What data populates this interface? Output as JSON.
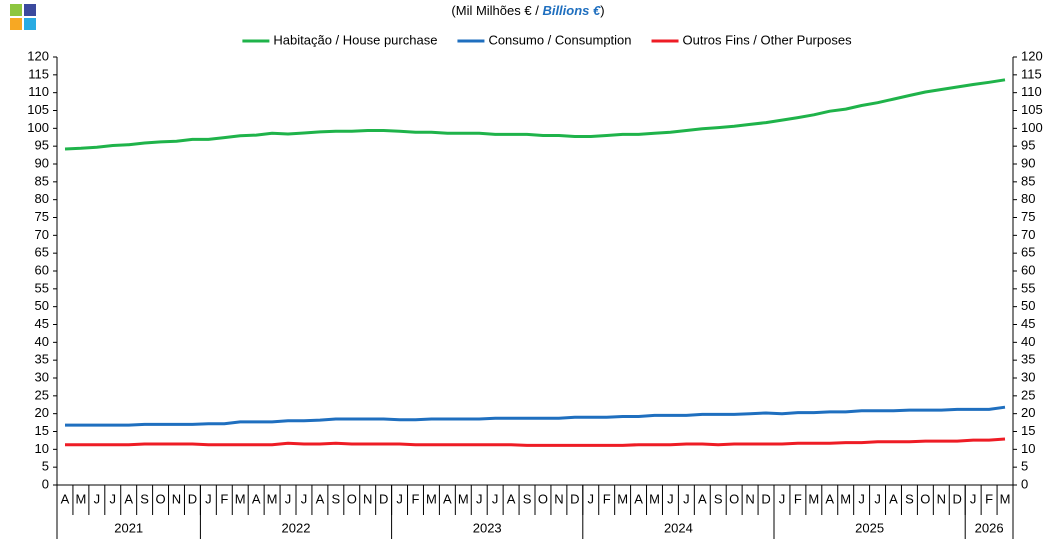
{
  "chart_data": {
    "type": "line",
    "subtitle_parts": [
      "(Mil Milhões  € / ",
      "Billions €",
      ")"
    ],
    "categories": [
      "A",
      "M",
      "J",
      "J",
      "A",
      "S",
      "O",
      "N",
      "D",
      "J",
      "F",
      "M",
      "A",
      "M",
      "J",
      "J",
      "A",
      "S",
      "O",
      "N",
      "D",
      "J",
      "F",
      "M",
      "A",
      "M",
      "J",
      "J",
      "A",
      "S",
      "O",
      "N",
      "D",
      "J",
      "F",
      "M",
      "A",
      "M",
      "J",
      "J",
      "A",
      "S",
      "O",
      "N",
      "D",
      "J",
      "F",
      "M",
      "A",
      "M",
      "J",
      "J",
      "A",
      "S",
      "O",
      "N",
      "D",
      "J",
      "F",
      "M"
    ],
    "years": [
      "2021",
      "2022",
      "2023",
      "2024",
      "2025",
      "2026"
    ],
    "series": [
      {
        "name": "Habitação / House purchase",
        "color": "#1fb34a",
        "values": [
          94.2,
          94.4,
          94.7,
          95.2,
          95.4,
          95.9,
          96.2,
          96.4,
          96.9,
          96.9,
          97.4,
          97.9,
          98.1,
          98.6,
          98.4,
          98.7,
          99.0,
          99.2,
          99.2,
          99.4,
          99.4,
          99.2,
          98.9,
          98.9,
          98.6,
          98.6,
          98.6,
          98.3,
          98.3,
          98.3,
          98.0,
          98.0,
          97.7,
          97.7,
          98.0,
          98.3,
          98.3,
          98.6,
          98.9,
          99.4,
          99.9,
          100.2,
          100.6,
          101.1,
          101.6,
          102.3,
          103.0,
          103.8,
          104.8,
          105.4,
          106.4,
          107.2,
          108.2,
          109.2,
          110.2,
          110.9,
          111.6,
          112.3,
          112.9,
          113.6
        ]
      },
      {
        "name": "Consumo / Consumption",
        "color": "#1f6fbf",
        "values": [
          16.8,
          16.8,
          16.8,
          16.8,
          16.8,
          17.0,
          17.0,
          17.0,
          17.0,
          17.2,
          17.2,
          17.7,
          17.7,
          17.7,
          18.0,
          18.0,
          18.2,
          18.5,
          18.5,
          18.5,
          18.5,
          18.3,
          18.3,
          18.5,
          18.5,
          18.5,
          18.5,
          18.7,
          18.7,
          18.7,
          18.7,
          18.7,
          19.0,
          19.0,
          19.0,
          19.2,
          19.2,
          19.5,
          19.5,
          19.5,
          19.8,
          19.8,
          19.8,
          20.0,
          20.2,
          20.0,
          20.3,
          20.3,
          20.5,
          20.5,
          20.8,
          20.8,
          20.8,
          21.0,
          21.0,
          21.0,
          21.2,
          21.2,
          21.2,
          21.8
        ]
      },
      {
        "name": "Outros Fins / Other Purposes",
        "color": "#ee1c25",
        "values": [
          11.3,
          11.3,
          11.3,
          11.3,
          11.3,
          11.5,
          11.5,
          11.5,
          11.5,
          11.3,
          11.3,
          11.3,
          11.3,
          11.3,
          11.7,
          11.5,
          11.5,
          11.7,
          11.5,
          11.5,
          11.5,
          11.5,
          11.3,
          11.3,
          11.3,
          11.3,
          11.3,
          11.3,
          11.3,
          11.1,
          11.1,
          11.1,
          11.1,
          11.1,
          11.1,
          11.1,
          11.3,
          11.3,
          11.3,
          11.5,
          11.5,
          11.3,
          11.5,
          11.5,
          11.5,
          11.5,
          11.7,
          11.7,
          11.7,
          11.9,
          11.9,
          12.1,
          12.1,
          12.1,
          12.3,
          12.3,
          12.3,
          12.6,
          12.6,
          12.9
        ]
      }
    ],
    "ylim": [
      0,
      120
    ],
    "yticks": [
      0,
      5,
      10,
      15,
      20,
      25,
      30,
      35,
      40,
      45,
      50,
      55,
      60,
      65,
      70,
      75,
      80,
      85,
      90,
      95,
      100,
      105,
      110,
      115,
      120
    ],
    "y2lim": [
      0,
      120
    ],
    "y2ticks": [
      0,
      5,
      10,
      15,
      20,
      25,
      30,
      35,
      40,
      45,
      50,
      55,
      60,
      65,
      70,
      75,
      80,
      85,
      90,
      95,
      100,
      105,
      110,
      115,
      120
    ],
    "grid": false
  }
}
